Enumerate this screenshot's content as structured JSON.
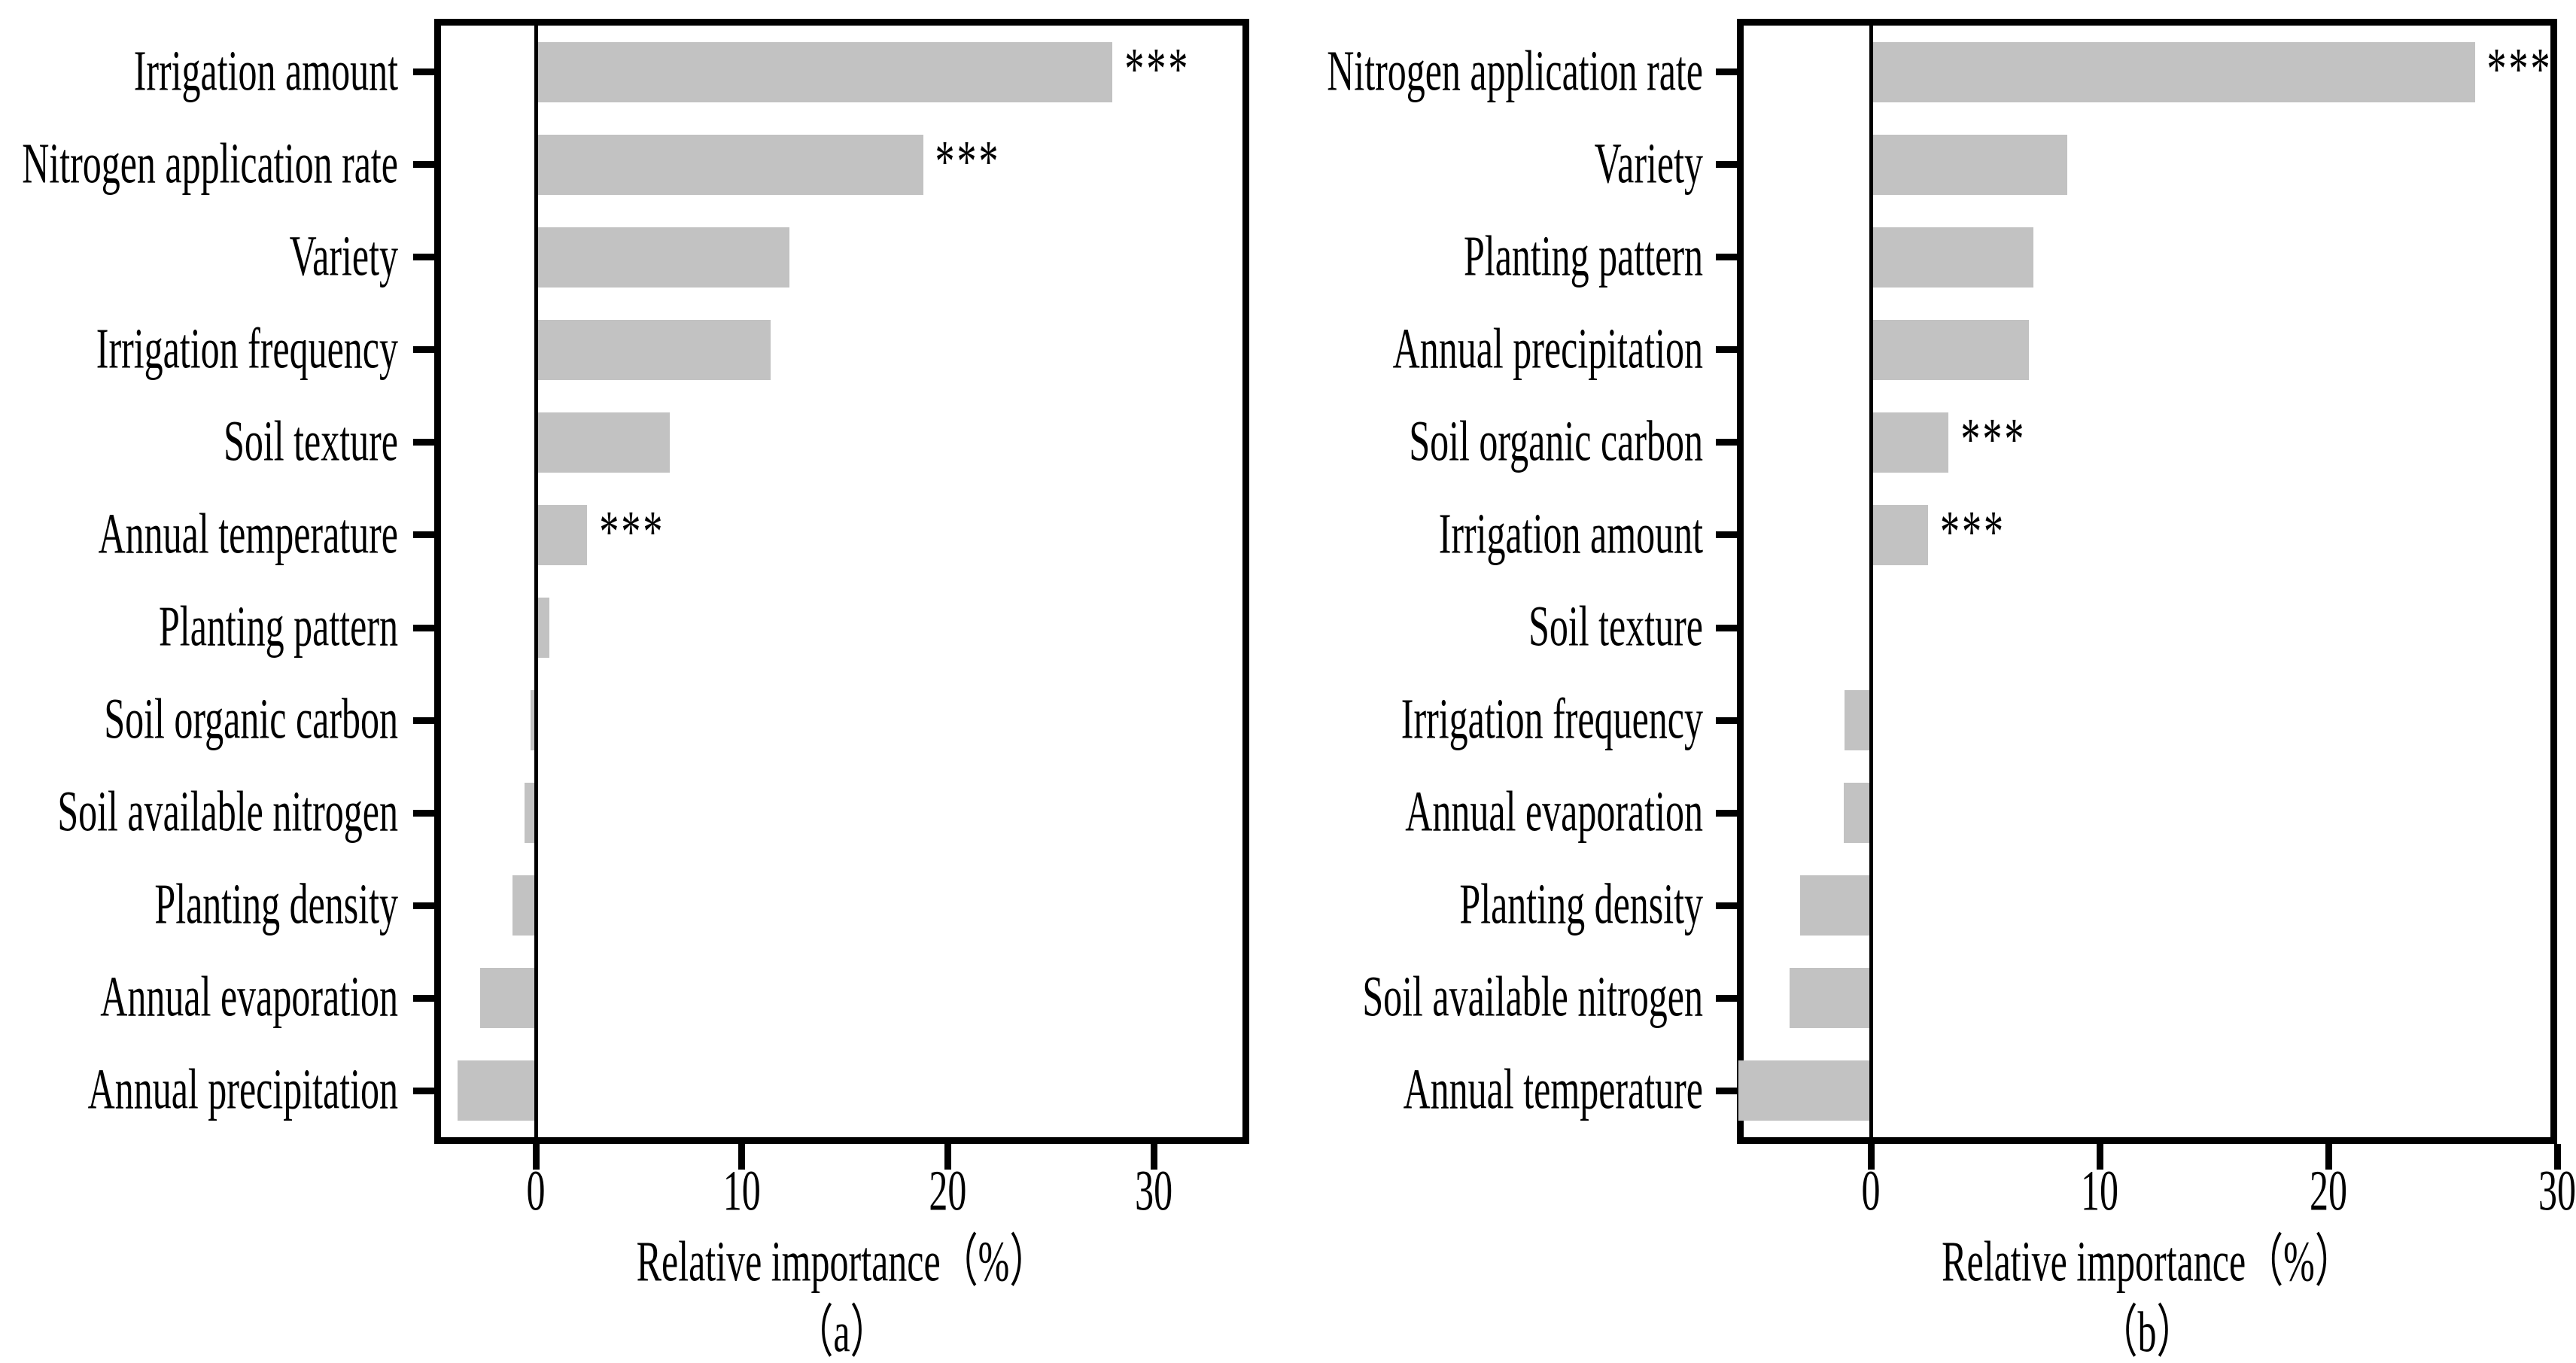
{
  "figure": {
    "background": "#ffffff",
    "bar_color": "#c2c2c2",
    "axis_color": "#000000",
    "significance_marker": "***"
  },
  "chart_data": [
    {
      "id": "a",
      "type": "bar",
      "orientation": "horizontal",
      "title": "",
      "xlabel": "Relative importance（%）",
      "panel_label": "（a）",
      "xticks": [
        0,
        10,
        20,
        30
      ],
      "xlim": [
        -4.93,
        34.6
      ],
      "grid": false,
      "legend": "none",
      "categories": [
        "Irrigation amount",
        "Nitrogen application rate",
        "Variety",
        "Irrigation frequency",
        "Soil texture",
        "Annual temperature",
        "Planting pattern",
        "Soil organic carbon",
        "Soil available nitrogen",
        "Planting density",
        "Annual evaporation",
        "Annual precipitation"
      ],
      "values": [
        28.0,
        18.8,
        12.3,
        11.4,
        6.5,
        2.5,
        0.65,
        -0.25,
        -0.55,
        -1.15,
        -2.7,
        -3.8
      ],
      "significance": [
        "***",
        "***",
        "",
        "",
        "",
        "***",
        "",
        "",
        "",
        "",
        "",
        ""
      ]
    },
    {
      "id": "b",
      "type": "bar",
      "orientation": "horizontal",
      "title": "",
      "xlabel": "Relative importance（%）",
      "panel_label": "（b）",
      "xticks": [
        0,
        10,
        20,
        30
      ],
      "xlim": [
        -5.85,
        30.0
      ],
      "grid": false,
      "legend": "none",
      "categories": [
        "Nitrogen application rate",
        "Variety",
        "Planting pattern",
        "Annual precipitation",
        "Soil organic carbon",
        "Irrigation amount",
        "Soil texture",
        "Irrigation frequency",
        "Annual evaporation",
        "Planting density",
        "Soil available nitrogen",
        "Annual temperature"
      ],
      "values": [
        26.4,
        8.6,
        7.1,
        6.9,
        3.4,
        2.5,
        0.0,
        -1.15,
        -1.2,
        -3.1,
        -3.55,
        -5.8
      ],
      "significance": [
        "***",
        "",
        "",
        "",
        "***",
        "***",
        "",
        "",
        "",
        "",
        "",
        ""
      ]
    }
  ]
}
